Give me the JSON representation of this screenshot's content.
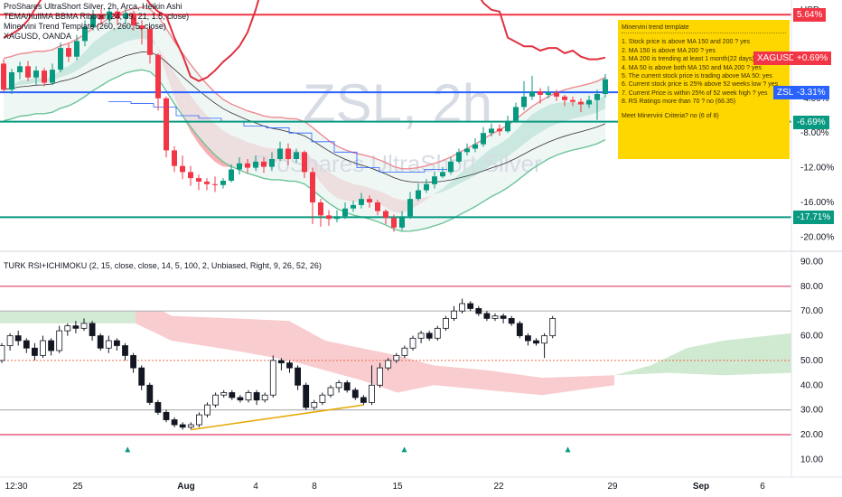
{
  "header": {
    "title": "ProShares UltraShort Silver, 2h, Arca, Heikin Ashi",
    "indicators": [
      "TEMA/hullMA BBMA Ribbon (24, 39, 21, 1.5, close)",
      "Minervini Trend Template (260, 260, 5, close)",
      "XAGUSD, OANDA"
    ]
  },
  "watermark": {
    "symbol": "ZSL, 2h",
    "name": "ProShares UltraShort Silver"
  },
  "price_axis": {
    "unit": "USD",
    "ticks": [
      "-4.00%",
      "-8.00%",
      "-12.00%",
      "-16.00%",
      "-20.00%"
    ],
    "tags": [
      {
        "label": "5.64%",
        "color": "#f23645",
        "value": 5.64
      },
      {
        "label": "XAGUSD",
        "color": "#f23645",
        "value": 0.69
      },
      {
        "label": "+0.69%",
        "color": "#f23645",
        "value": 0.69
      },
      {
        "label": "ZSL",
        "color": "#2962ff",
        "value": -3.31
      },
      {
        "label": "-3.31%",
        "color": "#2962ff",
        "value": -3.31
      },
      {
        "label": "-6.69%",
        "color": "#089981",
        "value": -6.69
      },
      {
        "label": "-17.71%",
        "color": "#089981",
        "value": -17.71
      }
    ]
  },
  "time_axis": [
    "12:30",
    "25",
    "Aug",
    "4",
    "8",
    "15",
    "22",
    "29",
    "Sep",
    "6"
  ],
  "minervini": {
    "title": "Minervini trend template",
    "lines": [
      "1. Stock price is above MA 150 and 200 ? yes",
      "2. MA 150 is above MA 200 ? yes",
      "3. MA 200 is trending at least 1 month(22 days) ?",
      "4. MA 50 is above both MA 150 and MA 200 ? yes",
      "5. The current stock price is trading  above MA 50: yes",
      "6. Current stock price is 25% above 52 weeks low ? yes",
      "7. Current Price is within 25% of 52 week high ? yes",
      "8. RS Ratings more than 70 ? no (66.35)"
    ],
    "footer": "Meet Minervini Criteria? no (6 of 8)"
  },
  "rsi_panel": {
    "title": "TURK RSI+ICHIMOKU (2, 15, close, close, 14, 5, 100, 2, Unbiased, Right, 9, 26, 52, 26)",
    "ticks": [
      "90.00",
      "80.00",
      "70.00",
      "60.00",
      "50.00",
      "40.00",
      "30.00",
      "20.00",
      "10.00"
    ]
  },
  "colors": {
    "up": "#089981",
    "down": "#f23645",
    "ma_blue": "#2962ff",
    "xag_red": "#e0303e",
    "ribbon_green": "#6cc4aa",
    "ribbon_red": "#f7a1a8",
    "panel_box": "#ffd700"
  },
  "chart_data": [
    {
      "type": "candlestick",
      "title": "ProShares UltraShort Silver, 2h, Arca, Heikin Ashi",
      "ylabel": "USD",
      "y_unit": "% change",
      "ylim": [
        -21,
        6.5
      ],
      "x": [
        "12:30",
        "25",
        "Aug",
        "4",
        "8",
        "15",
        "22",
        "29",
        "Sep",
        "6"
      ],
      "horizontal_levels": [
        5.64,
        -3.31,
        -6.69,
        -17.71
      ],
      "candles": [
        [
          0.0,
          -3.0,
          0.5,
          -3.3
        ],
        [
          -3.0,
          -1.0,
          -0.6,
          -3.5
        ],
        [
          -1.0,
          -0.3,
          0.2,
          -1.8
        ],
        [
          -0.3,
          -1.6,
          0.3,
          -2.0
        ],
        [
          -1.6,
          -0.8,
          -0.3,
          -2.4
        ],
        [
          -0.8,
          -2.2,
          -0.5,
          -2.6
        ],
        [
          -2.2,
          -0.7,
          0.0,
          -2.5
        ],
        [
          -0.7,
          1.8,
          2.4,
          -1.0
        ],
        [
          1.8,
          0.8,
          2.3,
          0.2
        ],
        [
          0.8,
          2.6,
          3.3,
          0.4
        ],
        [
          2.6,
          4.2,
          5.0,
          2.0
        ],
        [
          4.2,
          5.6,
          6.2,
          3.8
        ],
        [
          5.6,
          5.1,
          6.3,
          4.5
        ],
        [
          5.1,
          6.0,
          6.4,
          4.6
        ],
        [
          6.0,
          5.2,
          6.2,
          4.4
        ],
        [
          5.2,
          5.8,
          6.3,
          4.6
        ],
        [
          5.8,
          4.4,
          6.1,
          3.8
        ],
        [
          4.4,
          4.0,
          5.0,
          2.2
        ],
        [
          4.0,
          1.0,
          4.3,
          0.0
        ],
        [
          1.0,
          -4.0,
          1.2,
          -5.4
        ],
        [
          -4.0,
          -10.0,
          -3.8,
          -10.8
        ],
        [
          -10.0,
          -11.8,
          -9.5,
          -12.5
        ],
        [
          -11.8,
          -12.5,
          -10.6,
          -13.3
        ],
        [
          -12.5,
          -13.2,
          -11.8,
          -14.1
        ],
        [
          -13.2,
          -13.6,
          -12.8,
          -14.6
        ],
        [
          -13.6,
          -13.9,
          -13.2,
          -14.6
        ],
        [
          -13.9,
          -14.0,
          -13.0,
          -14.8
        ],
        [
          -14.0,
          -13.5,
          -13.2,
          -14.4
        ],
        [
          -13.5,
          -12.2,
          -11.6,
          -13.7
        ],
        [
          -12.2,
          -11.5,
          -10.8,
          -12.8
        ],
        [
          -11.5,
          -12.0,
          -11.0,
          -12.6
        ],
        [
          -12.0,
          -11.3,
          -10.6,
          -12.3
        ],
        [
          -11.3,
          -11.9,
          -10.8,
          -12.6
        ],
        [
          -11.9,
          -11.0,
          -10.2,
          -12.3
        ],
        [
          -11.0,
          -9.8,
          -9.0,
          -11.2
        ],
        [
          -9.8,
          -11.0,
          -9.2,
          -11.7
        ],
        [
          -11.0,
          -10.2,
          -9.8,
          -11.4
        ],
        [
          -10.2,
          -12.5,
          -10.0,
          -13.2
        ],
        [
          -12.5,
          -16.0,
          -12.0,
          -18.5
        ],
        [
          -16.0,
          -17.5,
          -15.6,
          -18.8
        ],
        [
          -17.5,
          -17.9,
          -16.9,
          -18.7
        ],
        [
          -17.9,
          -17.6,
          -16.9,
          -18.3
        ],
        [
          -17.6,
          -16.7,
          -16.0,
          -17.9
        ],
        [
          -16.7,
          -16.3,
          -15.8,
          -17.1
        ],
        [
          -16.3,
          -15.6,
          -14.9,
          -16.7
        ],
        [
          -15.6,
          -16.0,
          -15.2,
          -16.6
        ],
        [
          -16.0,
          -17.0,
          -15.7,
          -17.5
        ],
        [
          -17.0,
          -17.8,
          -16.8,
          -18.5
        ],
        [
          -17.8,
          -18.9,
          -17.4,
          -19.4
        ],
        [
          -18.9,
          -17.6,
          -17.0,
          -19.2
        ],
        [
          -17.6,
          -15.6,
          -14.8,
          -17.9
        ],
        [
          -15.6,
          -14.6,
          -13.8,
          -15.8
        ],
        [
          -14.6,
          -13.9,
          -13.3,
          -14.9
        ],
        [
          -13.9,
          -13.0,
          -12.4,
          -14.4
        ],
        [
          -13.0,
          -12.5,
          -11.9,
          -13.2
        ],
        [
          -12.5,
          -11.3,
          -10.8,
          -12.8
        ],
        [
          -11.3,
          -10.2,
          -9.8,
          -11.5
        ],
        [
          -10.2,
          -9.8,
          -9.2,
          -10.6
        ],
        [
          -9.8,
          -9.3,
          -8.6,
          -10.2
        ],
        [
          -9.3,
          -8.0,
          -7.3,
          -9.6
        ],
        [
          -8.0,
          -7.5,
          -6.9,
          -8.4
        ],
        [
          -7.5,
          -7.8,
          -7.0,
          -8.3
        ],
        [
          -7.8,
          -6.6,
          -6.0,
          -8.0
        ],
        [
          -6.6,
          -5.0,
          -4.5,
          -6.8
        ],
        [
          -5.0,
          -3.8,
          -2.0,
          -5.4
        ],
        [
          -3.8,
          -3.2,
          -1.4,
          -4.2
        ],
        [
          -3.2,
          -3.6,
          -2.8,
          -4.6
        ],
        [
          -3.6,
          -3.3,
          -2.6,
          -4.0
        ],
        [
          -3.3,
          -3.8,
          -3.0,
          -4.3
        ],
        [
          -3.8,
          -4.2,
          -3.6,
          -4.9
        ],
        [
          -4.2,
          -4.4,
          -3.8,
          -4.9
        ],
        [
          -4.4,
          -4.7,
          -4.0,
          -5.6
        ],
        [
          -4.7,
          -4.2,
          -3.7,
          -5.1
        ],
        [
          -4.2,
          -3.5,
          -3.0,
          -6.5
        ],
        [
          -3.5,
          -1.8,
          -1.2,
          -3.9
        ]
      ]
    },
    {
      "type": "candlestick",
      "title": "TURK RSI+ICHIMOKU (2, 15, close, close, 14, 5, 100, 2, Unbiased, Right, 9, 26, 52, 26)",
      "ylim": [
        5,
        92
      ],
      "levels": [
        80,
        70,
        50,
        30,
        20
      ],
      "candles": [
        [
          50,
          56,
          57,
          49
        ],
        [
          56,
          60,
          61,
          54
        ],
        [
          60,
          58,
          62,
          56
        ],
        [
          58,
          55,
          59,
          53
        ],
        [
          55,
          52,
          57,
          50
        ],
        [
          52,
          58,
          60,
          51
        ],
        [
          58,
          54,
          59,
          52
        ],
        [
          54,
          62,
          64,
          53
        ],
        [
          62,
          64,
          65,
          60
        ],
        [
          64,
          63,
          66,
          61
        ],
        [
          63,
          65,
          67,
          62
        ],
        [
          65,
          60,
          66,
          58
        ],
        [
          60,
          55,
          61,
          54
        ],
        [
          55,
          58,
          60,
          53
        ],
        [
          58,
          56,
          59,
          54
        ],
        [
          56,
          52,
          57,
          50
        ],
        [
          52,
          47,
          53,
          45
        ],
        [
          47,
          40,
          48,
          38
        ],
        [
          40,
          33,
          41,
          32
        ],
        [
          33,
          29,
          34,
          28
        ],
        [
          29,
          26,
          30,
          25
        ],
        [
          26,
          24,
          27,
          23
        ],
        [
          24,
          23,
          25,
          22
        ],
        [
          23,
          24,
          25,
          22
        ],
        [
          24,
          28,
          29,
          23
        ],
        [
          28,
          32,
          33,
          27
        ],
        [
          32,
          36,
          37,
          31
        ],
        [
          36,
          37,
          38,
          35
        ],
        [
          37,
          35,
          38,
          34
        ],
        [
          35,
          34,
          36,
          33
        ],
        [
          34,
          37,
          38,
          33
        ],
        [
          37,
          34,
          38,
          32
        ],
        [
          34,
          36,
          37,
          33
        ],
        [
          36,
          50,
          52,
          35
        ],
        [
          50,
          49,
          51,
          46
        ],
        [
          49,
          47,
          50,
          45
        ],
        [
          47,
          40,
          48,
          38
        ],
        [
          40,
          31,
          41,
          30
        ],
        [
          31,
          33,
          34,
          30
        ],
        [
          33,
          36,
          37,
          32
        ],
        [
          36,
          39,
          40,
          35
        ],
        [
          39,
          41,
          42,
          37
        ],
        [
          41,
          38,
          42,
          37
        ],
        [
          38,
          35,
          39,
          34
        ],
        [
          35,
          33,
          36,
          32
        ],
        [
          33,
          40,
          48,
          32
        ],
        [
          40,
          47,
          49,
          39
        ],
        [
          47,
          50,
          51,
          46
        ],
        [
          50,
          52,
          53,
          49
        ],
        [
          52,
          55,
          56,
          51
        ],
        [
          55,
          59,
          60,
          54
        ],
        [
          59,
          61,
          62,
          57
        ],
        [
          61,
          59,
          62,
          58
        ],
        [
          59,
          63,
          64,
          58
        ],
        [
          63,
          67,
          68,
          62
        ],
        [
          67,
          70,
          72,
          66
        ],
        [
          70,
          73,
          75,
          69
        ],
        [
          73,
          71,
          74,
          70
        ],
        [
          71,
          69,
          72,
          68
        ],
        [
          69,
          67,
          70,
          66
        ],
        [
          67,
          68,
          69,
          66
        ],
        [
          68,
          67,
          69,
          65
        ],
        [
          67,
          65,
          68,
          64
        ],
        [
          65,
          60,
          66,
          59
        ],
        [
          60,
          58,
          61,
          56
        ],
        [
          58,
          57,
          59,
          56
        ],
        [
          57,
          60,
          61,
          51
        ],
        [
          60,
          67,
          68,
          59
        ]
      ],
      "divergence_line": [
        [
          23,
          22
        ],
        [
          44,
          32
        ]
      ],
      "signal_markers": [
        10,
        32,
        45
      ]
    },
    {
      "type": "line",
      "series": [
        {
          "name": "XAGUSD",
          "values": [
            3.0,
            3.4,
            4.0,
            5.0,
            6.5,
            8.0,
            9.3,
            9.0,
            8.6,
            8.4,
            9.0,
            9.8,
            10.2,
            10.5,
            10.7,
            11.0,
            10.4,
            8.2,
            6.9,
            6.0,
            5.5,
            3.0,
            1.0,
            -1.5,
            -2.0,
            -1.6,
            -0.8,
            0.2,
            1.0,
            2.0,
            3.6,
            6.2,
            9.5,
            12.0,
            14.5,
            18.0,
            21.0,
            22.5,
            20.0,
            22.0,
            21.0,
            20.0,
            19.5,
            20.5,
            21.0,
            19.0,
            20.5,
            22.0,
            21.8,
            20.0,
            18.0,
            16.5,
            13.5,
            11.5,
            10.5,
            10.0,
            9.8,
            9.2,
            8.5,
            7.0,
            6.2,
            6.0,
            3.0,
            2.5,
            2.0,
            2.0,
            1.5,
            1.8,
            1.8,
            1.2,
            1.5,
            0.8,
            0.5,
            0.5,
            0.7
          ]
        }
      ]
    }
  ]
}
